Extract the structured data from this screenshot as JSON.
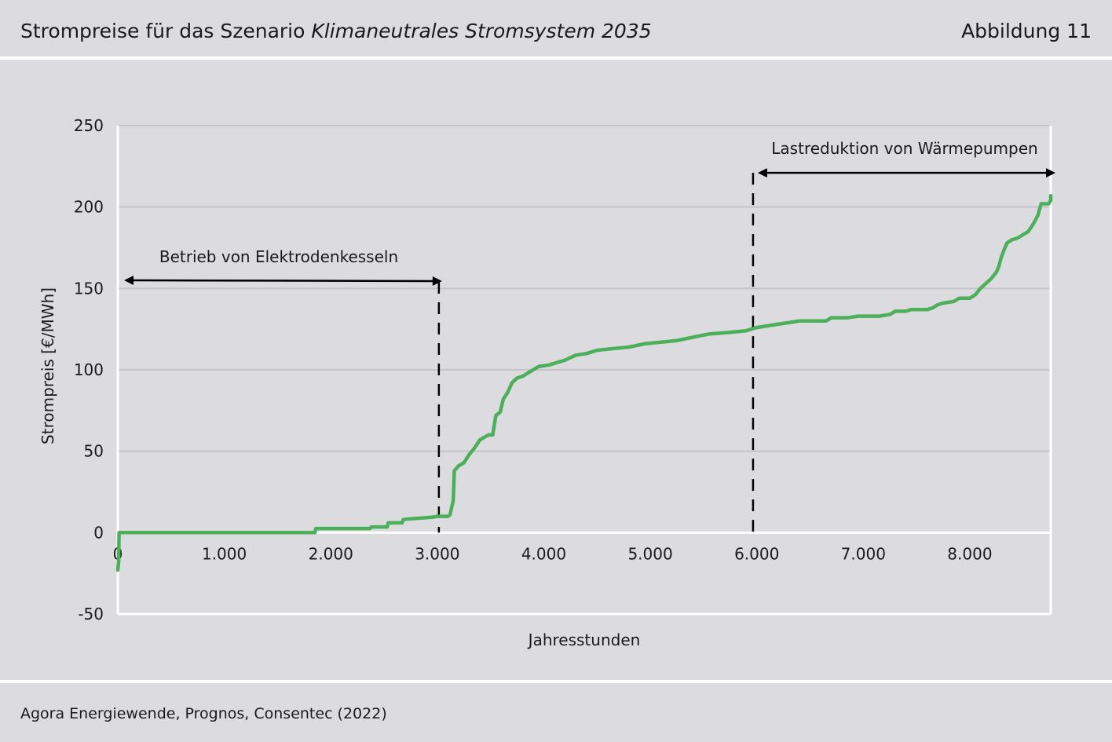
{
  "header": {
    "title_prefix": "Strompreise für das Szenario ",
    "title_italic": "Klimaneutrales Stromsystem 2035",
    "figure_label": "Abbildung 11"
  },
  "footer": {
    "source": "Agora Energiewende, Prognos, Consentec (2022)"
  },
  "colors": {
    "background": "#dcdbe0",
    "line": "#4caf5a",
    "grid": "#c4c3c8",
    "axis": "#ffffff",
    "annotation": "#000000"
  },
  "chart_data": {
    "type": "line",
    "title": "",
    "xlabel": "Jahresstunden",
    "ylabel": "Strompreis [€/MWh]",
    "xlim": [
      0,
      8760
    ],
    "ylim": [
      -50,
      250
    ],
    "x_ticks": [
      0,
      1000,
      2000,
      3000,
      4000,
      5000,
      6000,
      7000,
      8000
    ],
    "x_tick_labels": [
      "0",
      "1.000",
      "2.000",
      "3.000",
      "4.000",
      "5.000",
      "6.000",
      "7.000",
      "8.000"
    ],
    "y_ticks": [
      -50,
      0,
      50,
      100,
      150,
      200,
      250
    ],
    "y_tick_labels": [
      "-50",
      "0",
      "50",
      "100",
      "150",
      "200",
      "250"
    ],
    "grid": true,
    "series": [
      {
        "points": [
          [
            0,
            -23
          ],
          [
            8,
            -18
          ],
          [
            12,
            0
          ],
          [
            1850,
            0
          ],
          [
            1860,
            2.5
          ],
          [
            2370,
            2.5
          ],
          [
            2380,
            3.5
          ],
          [
            2530,
            3.5
          ],
          [
            2540,
            6
          ],
          [
            2670,
            6
          ],
          [
            2680,
            8
          ],
          [
            2750,
            8.5
          ],
          [
            2850,
            9
          ],
          [
            2960,
            9.5
          ],
          [
            3000,
            10
          ],
          [
            3100,
            10
          ],
          [
            3120,
            11
          ],
          [
            3150,
            20
          ],
          [
            3160,
            38
          ],
          [
            3200,
            41
          ],
          [
            3250,
            43
          ],
          [
            3300,
            48
          ],
          [
            3350,
            52
          ],
          [
            3400,
            57
          ],
          [
            3480,
            60
          ],
          [
            3520,
            60
          ],
          [
            3550,
            72
          ],
          [
            3590,
            74
          ],
          [
            3620,
            82
          ],
          [
            3660,
            86
          ],
          [
            3700,
            92
          ],
          [
            3750,
            95
          ],
          [
            3800,
            96
          ],
          [
            3900,
            100
          ],
          [
            3950,
            102
          ],
          [
            4050,
            103
          ],
          [
            4200,
            106
          ],
          [
            4300,
            109
          ],
          [
            4400,
            110
          ],
          [
            4500,
            112
          ],
          [
            4650,
            113
          ],
          [
            4800,
            114
          ],
          [
            4950,
            116
          ],
          [
            5100,
            117
          ],
          [
            5250,
            118
          ],
          [
            5400,
            120
          ],
          [
            5550,
            122
          ],
          [
            5750,
            123
          ],
          [
            5900,
            124
          ],
          [
            6000,
            126
          ],
          [
            6100,
            127
          ],
          [
            6200,
            128
          ],
          [
            6300,
            129
          ],
          [
            6400,
            130
          ],
          [
            6650,
            130
          ],
          [
            6700,
            132
          ],
          [
            6850,
            132
          ],
          [
            6950,
            133
          ],
          [
            7150,
            133
          ],
          [
            7250,
            134
          ],
          [
            7300,
            136
          ],
          [
            7400,
            136
          ],
          [
            7450,
            137
          ],
          [
            7600,
            137
          ],
          [
            7650,
            138
          ],
          [
            7700,
            140
          ],
          [
            7750,
            141
          ],
          [
            7850,
            142
          ],
          [
            7900,
            144
          ],
          [
            8000,
            144
          ],
          [
            8050,
            146
          ],
          [
            8100,
            150
          ],
          [
            8150,
            153
          ],
          [
            8200,
            156
          ],
          [
            8250,
            160
          ],
          [
            8270,
            163
          ],
          [
            8300,
            170
          ],
          [
            8330,
            175
          ],
          [
            8350,
            178
          ],
          [
            8400,
            180
          ],
          [
            8450,
            181
          ],
          [
            8500,
            183
          ],
          [
            8550,
            185
          ],
          [
            8600,
            190
          ],
          [
            8640,
            195
          ],
          [
            8670,
            202
          ],
          [
            8740,
            202
          ],
          [
            8760,
            204
          ],
          [
            8760,
            207
          ]
        ]
      }
    ],
    "annotations": [
      {
        "label": "Betrieb von Elektrodenkesseln",
        "x_start": 0,
        "x_end": 3000,
        "y_start": 155,
        "y_end": 154.5
      },
      {
        "label": "Lastreduktion von Wärmepumpen",
        "x_start": 5950,
        "x_end": 8760,
        "y_start": 221,
        "y_end": 221
      }
    ],
    "dashed_lines": [
      {
        "x": 3000,
        "y_top": 154
      },
      {
        "x": 5950,
        "y_top": 221
      }
    ]
  }
}
